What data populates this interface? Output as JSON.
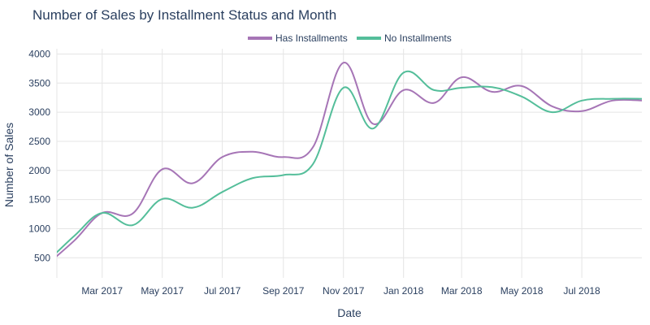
{
  "title": "Number of Sales by Installment Status and Month",
  "chart_data": {
    "type": "line",
    "title": "Number of Sales by Installment Status and Month",
    "xlabel": "Date",
    "ylabel": "Number of Sales",
    "x": [
      "2017-01-01",
      "2017-02-01",
      "2017-03-01",
      "2017-04-01",
      "2017-05-01",
      "2017-06-01",
      "2017-07-01",
      "2017-08-01",
      "2017-09-01",
      "2017-10-01",
      "2017-11-01",
      "2017-12-01",
      "2018-01-01",
      "2018-02-01",
      "2018-03-01",
      "2018-04-01",
      "2018-05-01",
      "2018-06-01",
      "2018-07-01",
      "2018-08-01",
      "2018-09-01"
    ],
    "series": [
      {
        "name": "Has Installments",
        "color": "#a675b6",
        "values": [
          340,
          800,
          1270,
          1260,
          2020,
          1780,
          2230,
          2320,
          2230,
          2400,
          3850,
          2800,
          3380,
          3160,
          3600,
          3350,
          3450,
          3100,
          3020,
          3200,
          3200
        ]
      },
      {
        "name": "No Installments",
        "color": "#54be9a",
        "values": [
          380,
          880,
          1270,
          1060,
          1510,
          1360,
          1630,
          1870,
          1920,
          2110,
          3420,
          2720,
          3680,
          3380,
          3420,
          3430,
          3270,
          3000,
          3200,
          3230,
          3230
        ]
      }
    ],
    "x_ticks": [
      "Mar 2017",
      "May 2017",
      "Jul 2017",
      "Sep 2017",
      "Nov 2017",
      "Jan 2018",
      "Mar 2018",
      "May 2018",
      "Jul 2018"
    ],
    "y_ticks": [
      500,
      1000,
      1500,
      2000,
      2500,
      3000,
      3500,
      4000
    ],
    "xlim": [
      "2017-01-14",
      "2018-08-31"
    ],
    "ylim": [
      155,
      4090
    ],
    "grid": true,
    "legend": "top-center"
  }
}
